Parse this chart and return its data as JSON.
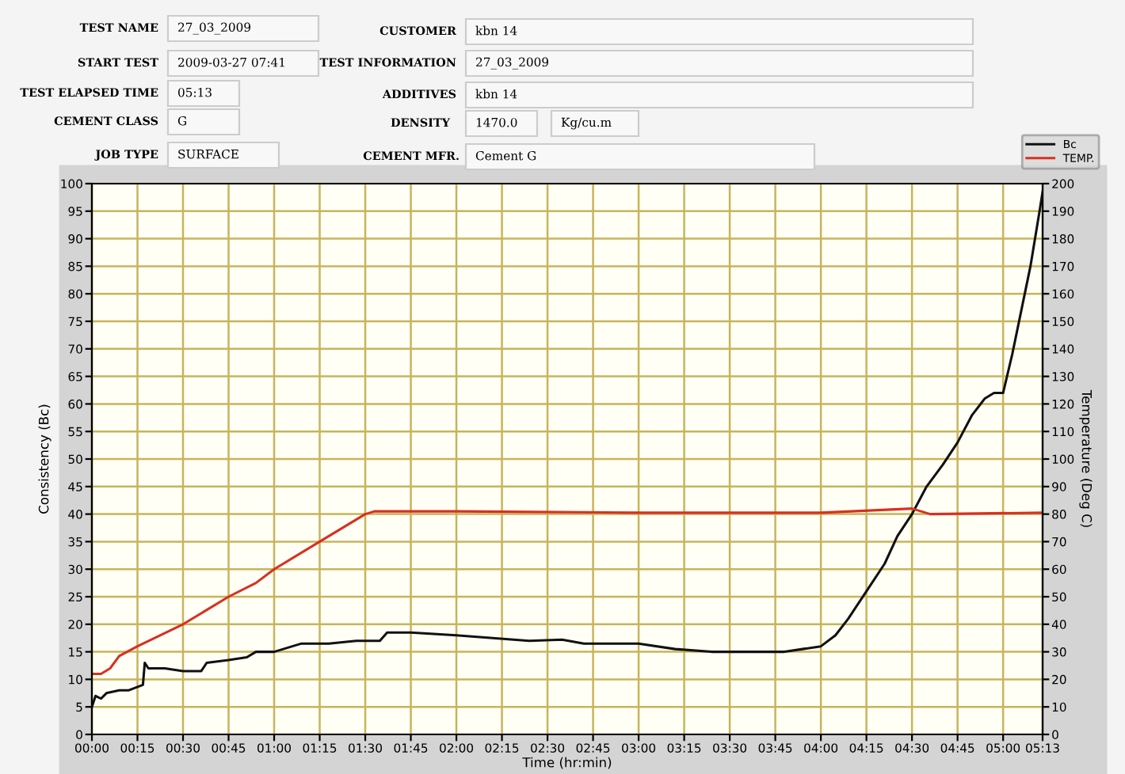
{
  "chart_data": {
    "type": "line",
    "annotations": [
      "TEST NAME",
      "27_03_2009",
      "START TEST",
      "2009-03-27 07:41",
      "TEST ELAPSED TIME",
      "05:13",
      "CEMENT CLASS",
      "G",
      "JOB TYPE",
      "SURFACE",
      "CUSTOMER",
      "kbn 14",
      "TEST INFORMATION",
      "27_03_2009",
      "ADDITIVES",
      "kbn 14",
      "DENSITY",
      "1470.0",
      "Kg/cu.m",
      "CEMENT MFR.",
      "Cement G"
    ],
    "xlabel": "Time (hr:min)",
    "ylabel": "Consistency (Bc)",
    "y2label": "Temperature (Deg C)",
    "xlim": [
      0,
      5.2167
    ],
    "xticks": [
      {
        "value": 0,
        "label": "00:00"
      },
      {
        "value": 0.25,
        "label": "00:15"
      },
      {
        "value": 0.5,
        "label": "00:30"
      },
      {
        "value": 0.75,
        "label": "00:45"
      },
      {
        "value": 1,
        "label": "01:00"
      },
      {
        "value": 1.25,
        "label": "01:15"
      },
      {
        "value": 1.5,
        "label": "01:30"
      },
      {
        "value": 1.75,
        "label": "01:45"
      },
      {
        "value": 2,
        "label": "02:00"
      },
      {
        "value": 2.25,
        "label": "02:15"
      },
      {
        "value": 2.5,
        "label": "02:30"
      },
      {
        "value": 2.75,
        "label": "02:45"
      },
      {
        "value": 3,
        "label": "03:00"
      },
      {
        "value": 3.25,
        "label": "03:15"
      },
      {
        "value": 3.5,
        "label": "03:30"
      },
      {
        "value": 3.75,
        "label": "03:45"
      },
      {
        "value": 4,
        "label": "04:00"
      },
      {
        "value": 4.25,
        "label": "04:15"
      },
      {
        "value": 4.5,
        "label": "04:30"
      },
      {
        "value": 4.75,
        "label": "04:45"
      },
      {
        "value": 5,
        "label": "05:00"
      },
      {
        "value": 5.2167,
        "label": "05:13"
      }
    ],
    "ylim": [
      0,
      100
    ],
    "yticks": [
      0,
      5,
      10,
      15,
      20,
      25,
      30,
      35,
      40,
      45,
      50,
      55,
      60,
      65,
      70,
      75,
      80,
      85,
      90,
      95,
      100
    ],
    "y2lim": [
      0,
      200
    ],
    "y2ticks": [
      0,
      10,
      20,
      30,
      40,
      50,
      60,
      70,
      80,
      90,
      100,
      110,
      120,
      130,
      140,
      150,
      160,
      170,
      180,
      190,
      200
    ],
    "grid": true,
    "legend": "top right",
    "series": [
      {
        "name": "Bc",
        "color": "#111111",
        "x": [
          0,
          0.02,
          0.05,
          0.08,
          0.15,
          0.2,
          0.28,
          0.29,
          0.31,
          0.4,
          0.5,
          0.6,
          0.63,
          0.75,
          0.85,
          0.9,
          1.0,
          1.05,
          1.15,
          1.3,
          1.45,
          1.58,
          1.62,
          1.75,
          2.0,
          2.2,
          2.4,
          2.58,
          2.7,
          3.0,
          3.2,
          3.4,
          3.8,
          3.9,
          4.0,
          4.08,
          4.15,
          4.25,
          4.35,
          4.42,
          4.5,
          4.58,
          4.67,
          4.75,
          4.83,
          4.9,
          4.95,
          5.0,
          5.05,
          5.1,
          5.15,
          5.2,
          5.2167
        ],
        "values": [
          5,
          7,
          6.5,
          7.5,
          8,
          8,
          9,
          13,
          12,
          12,
          11.5,
          11.5,
          13,
          13.5,
          14,
          15,
          15,
          15.5,
          16.5,
          16.5,
          17,
          17,
          18.5,
          18.5,
          18,
          17.5,
          17,
          17.2,
          16.5,
          16.5,
          15.5,
          15,
          15,
          15.5,
          16,
          18,
          21,
          26,
          31,
          36,
          40,
          45,
          49,
          53,
          58,
          61,
          62,
          62,
          69,
          77,
          85,
          95,
          98.5
        ]
      },
      {
        "name": "TEMP.",
        "color": "#d83020",
        "axis": "y2",
        "x": [
          0,
          0.05,
          0.1,
          0.15,
          0.25,
          0.5,
          0.75,
          0.9,
          1.0,
          1.25,
          1.5,
          1.55,
          2.0,
          3.0,
          4.0,
          4.5,
          4.6,
          5.2167
        ],
        "values": [
          22,
          22,
          24,
          28.5,
          32,
          40,
          50,
          55,
          60,
          70,
          80,
          81,
          81,
          80.5,
          80.5,
          82,
          80,
          80.5
        ]
      }
    ]
  }
}
